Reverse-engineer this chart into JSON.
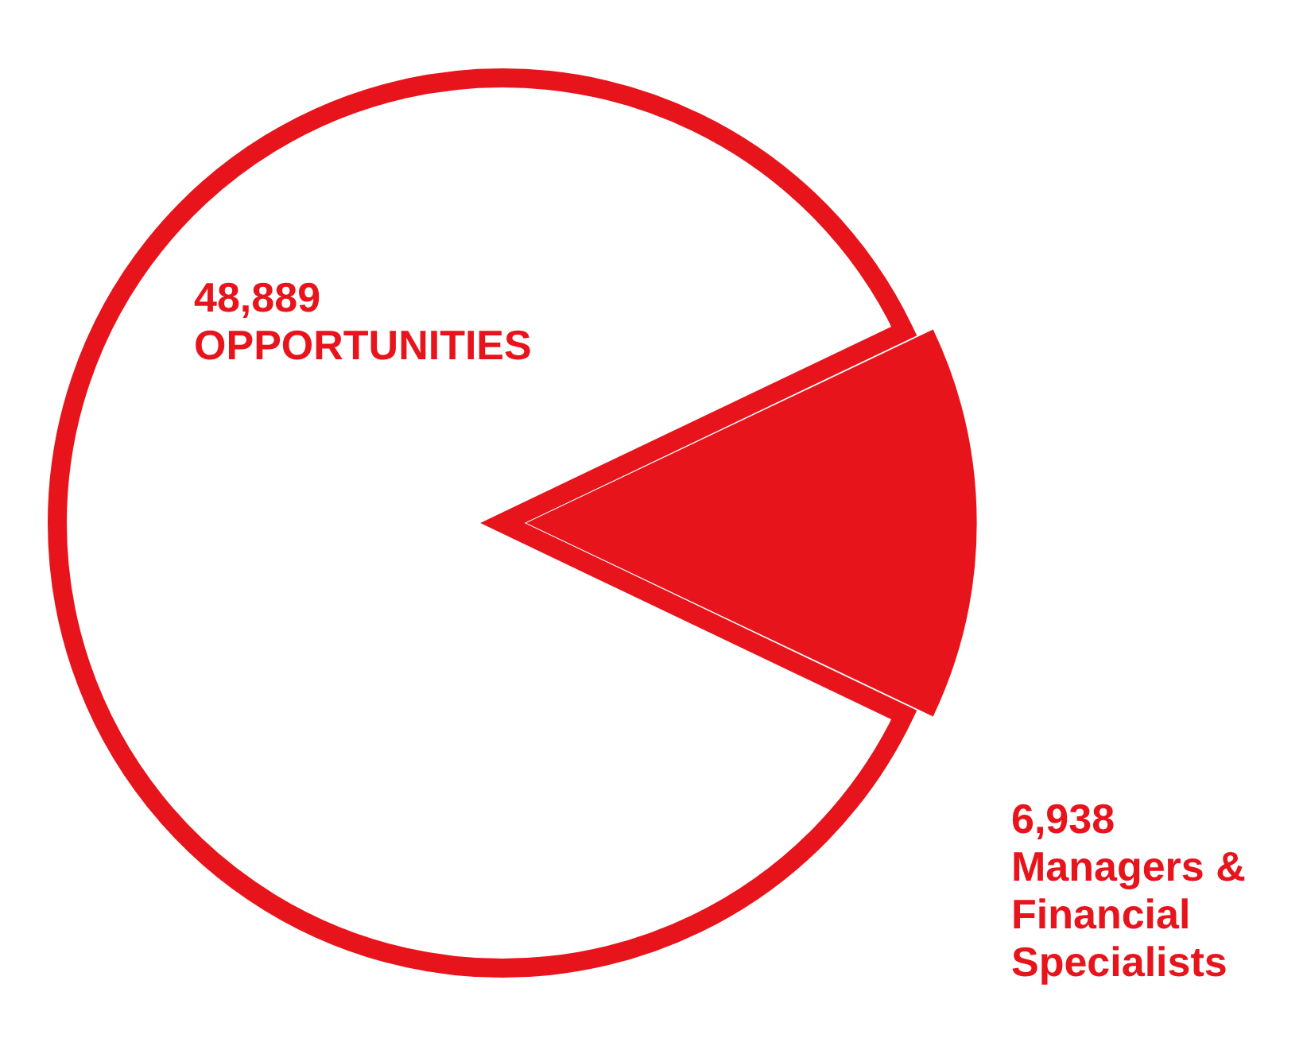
{
  "chart_data": {
    "type": "pie",
    "categories": [
      null,
      "Managers & Financial Specialists"
    ],
    "values": [
      41951,
      6938
    ],
    "value_labels": [
      null,
      "6,938"
    ],
    "colors": [
      "#ffffff",
      "#e8141c"
    ],
    "annotations": [
      "48,889\nOPPORTUNITIES"
    ],
    "legend": false
  }
}
